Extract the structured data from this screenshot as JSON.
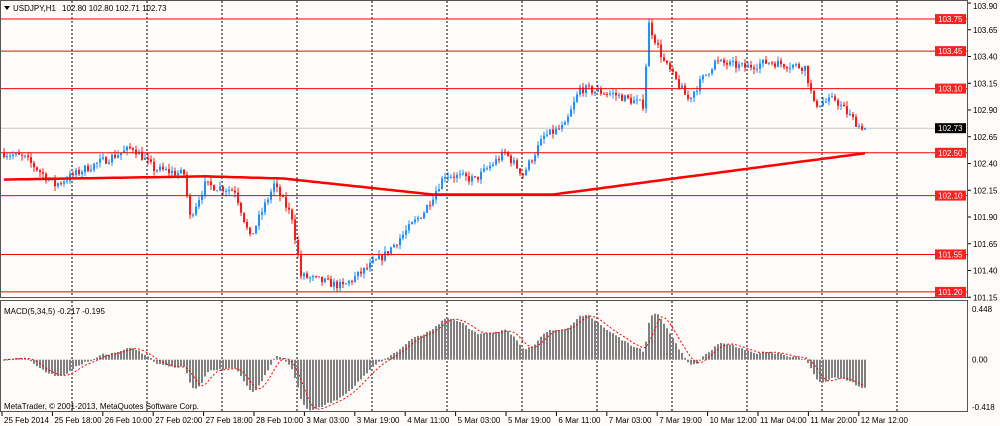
{
  "header": {
    "symbol": "USDJPY,H1",
    "ohlc": "102.80 102.80 102.71 102.73"
  },
  "watermark": "MetaTrader, © 2001-2013, MetaQuotes Software Corp.",
  "colors": {
    "bull": "#1e90ff",
    "bear": "#ff1a1a",
    "ma": "#ff0000",
    "level": "#ff0000",
    "grid": "#000000",
    "hist": "#808080",
    "signal": "#ff0000"
  },
  "chart_data": {
    "type": "candlestick",
    "price_axis": {
      "min": 101.15,
      "max": 103.9,
      "labels": [
        "103.90",
        "103.65",
        "103.40",
        "103.15",
        "102.90",
        "102.65",
        "102.40",
        "102.15",
        "101.90",
        "101.65",
        "101.40",
        "101.15"
      ]
    },
    "levels": [
      "103.75",
      "103.45",
      "103.10",
      "102.50",
      "102.10",
      "101.55",
      "101.20"
    ],
    "current_price": "102.73",
    "time_labels": [
      "25 Feb 2014",
      "25 Feb 18:00",
      "26 Feb 10:00",
      "27 Feb 02:00",
      "27 Feb 18:00",
      "28 Feb 10:00",
      "3 Mar 03:00",
      "3 Mar 19:00",
      "4 Mar 11:00",
      "5 Mar 03:00",
      "5 Mar 19:00",
      "6 Mar 11:00",
      "7 Mar 03:00",
      "7 Mar 19:00",
      "10 Mar 12:00",
      "11 Mar 04:00",
      "11 Mar 20:00",
      "12 Mar 12:00"
    ],
    "bars": 288,
    "close_anchors": [
      [
        0,
        102.5
      ],
      [
        7,
        102.45
      ],
      [
        17,
        102.2
      ],
      [
        27,
        102.35
      ],
      [
        43,
        102.55
      ],
      [
        50,
        102.35
      ],
      [
        60,
        102.3
      ],
      [
        62,
        101.9
      ],
      [
        67,
        102.2
      ],
      [
        77,
        102.15
      ],
      [
        82,
        101.7
      ],
      [
        90,
        102.2
      ],
      [
        96,
        101.9
      ],
      [
        99,
        101.35
      ],
      [
        113,
        101.25
      ],
      [
        127,
        101.55
      ],
      [
        140,
        101.95
      ],
      [
        147,
        102.3
      ],
      [
        157,
        102.25
      ],
      [
        167,
        102.5
      ],
      [
        173,
        102.3
      ],
      [
        180,
        102.65
      ],
      [
        187,
        102.75
      ],
      [
        192,
        103.1
      ],
      [
        203,
        103.05
      ],
      [
        213,
        102.95
      ],
      [
        215,
        103.7
      ],
      [
        220,
        103.35
      ],
      [
        228,
        103.0
      ],
      [
        237,
        103.35
      ],
      [
        247,
        103.3
      ],
      [
        255,
        103.35
      ],
      [
        267,
        103.3
      ],
      [
        270,
        102.95
      ],
      [
        277,
        103.0
      ],
      [
        285,
        102.75
      ],
      [
        288,
        102.73
      ]
    ],
    "ma_anchors": [
      [
        0,
        102.25
      ],
      [
        67,
        102.28
      ],
      [
        93,
        102.26
      ],
      [
        143,
        102.11
      ],
      [
        183,
        102.11
      ],
      [
        288,
        102.5
      ]
    ],
    "macd": {
      "label": "MACD(5,34,5) -0.217 -0.195",
      "axis_labels": [
        "0.448",
        "0.00",
        "-0.418"
      ],
      "max": 0.448,
      "min": -0.418
    }
  }
}
